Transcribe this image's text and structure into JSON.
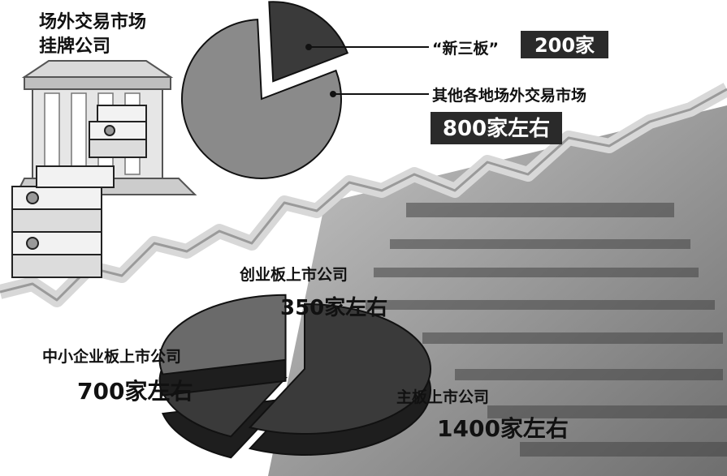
{
  "heading": {
    "line1": "场外交易市场",
    "line2": "挂牌公司"
  },
  "colors": {
    "dark_slice": "#3a3a3a",
    "light_slice": "#8a8a8a",
    "mid_slice": "#6a6a6a",
    "value_box": "#2a2a2a",
    "value_text": "#ffffff",
    "background_glow": "#e6e6e6"
  },
  "chart_data": [
    {
      "type": "pie",
      "categories": [
        "“新三板”",
        "其他各地场外交易市场"
      ],
      "values": [
        200,
        800
      ],
      "unit": "家",
      "value_labels": [
        "200家",
        "800家左右"
      ],
      "exploded": [
        true,
        false
      ]
    },
    {
      "type": "pie",
      "categories": [
        "创业板上市公司",
        "中小企业板上市公司",
        "主板上市公司"
      ],
      "values": [
        350,
        700,
        1400
      ],
      "unit": "家",
      "value_labels": [
        "350家左右",
        "700家左右",
        "1400家左右"
      ],
      "exploded": [
        true,
        true,
        false
      ],
      "style": "3d"
    }
  ]
}
